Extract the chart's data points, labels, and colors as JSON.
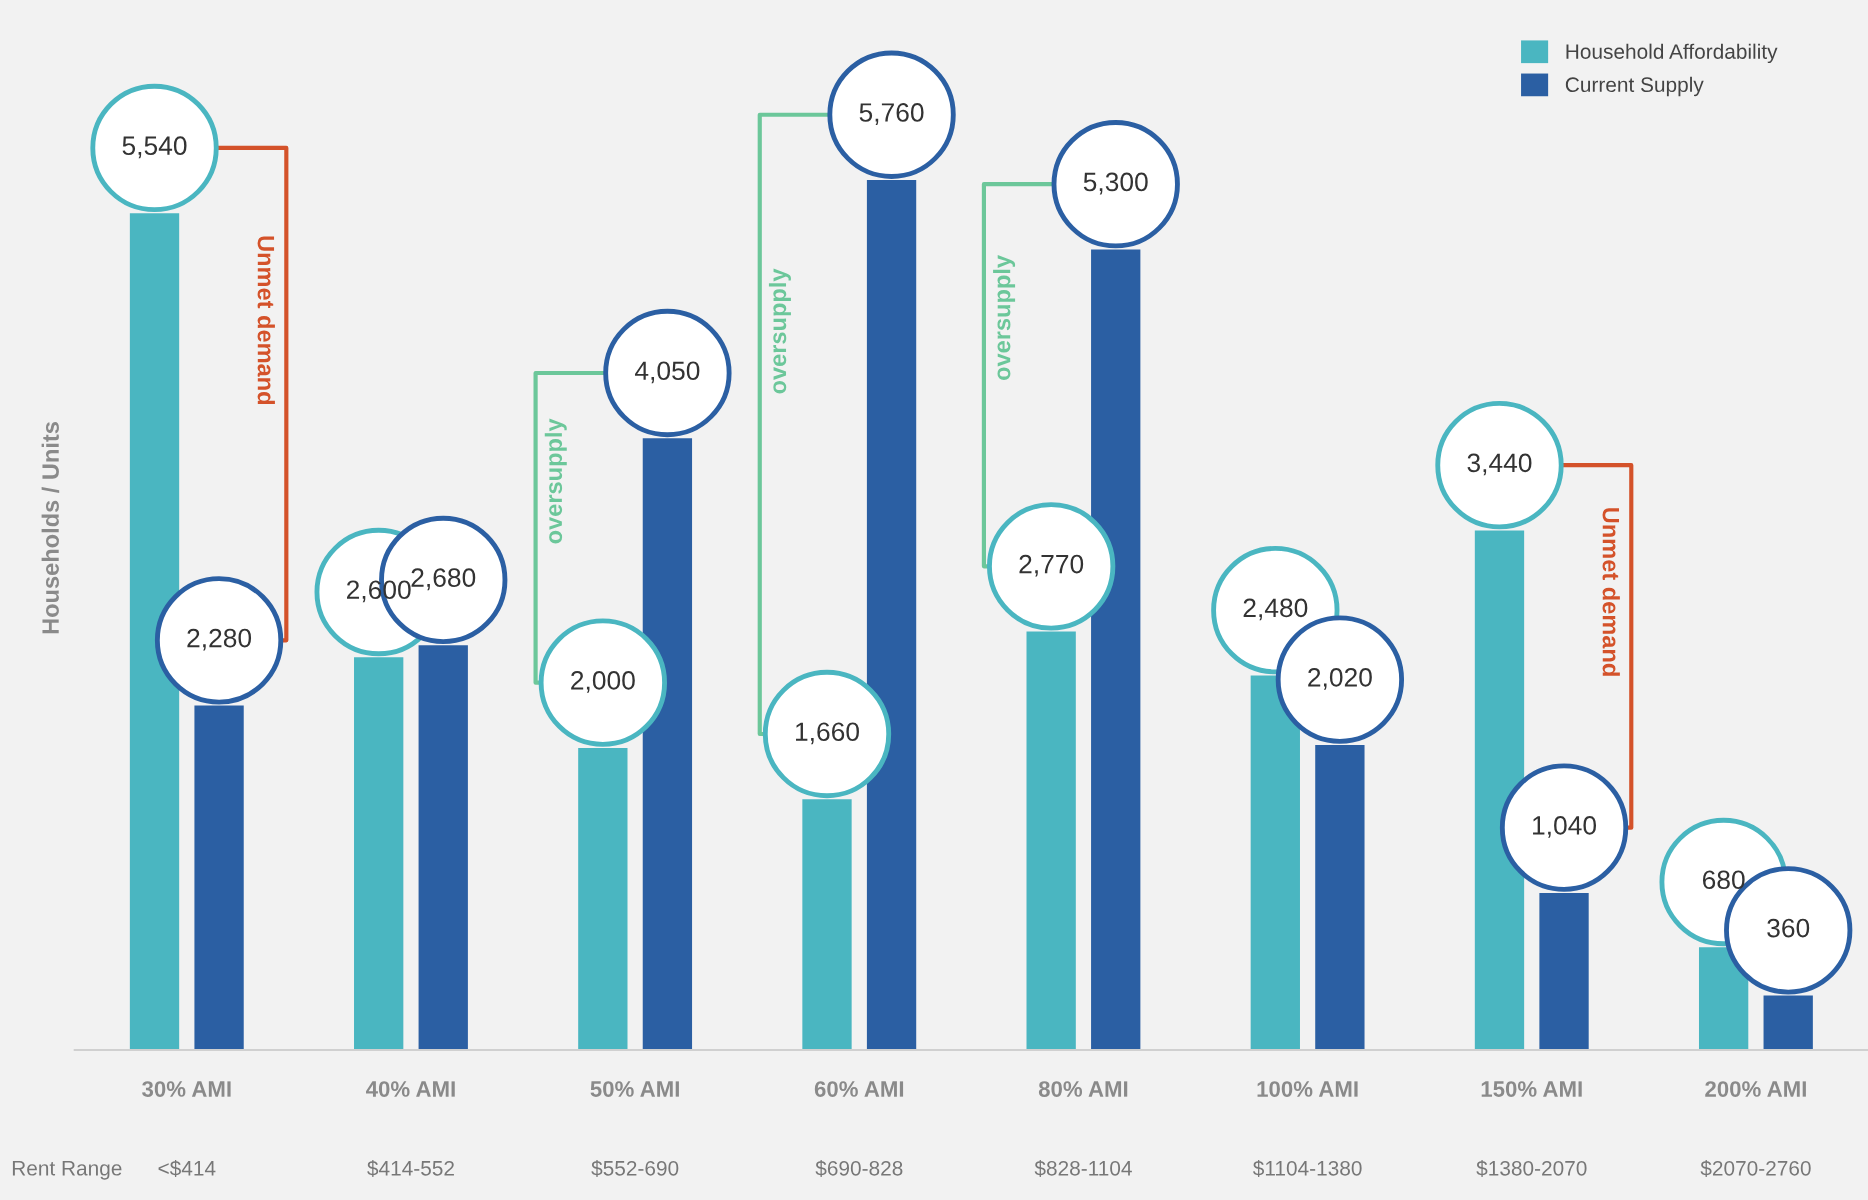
{
  "chart_data": {
    "type": "bar",
    "ylabel": "Households / Units",
    "categories": [
      "30% AMI",
      "40% AMI",
      "50% AMI",
      "60% AMI",
      "80% AMI",
      "100% AMI",
      "150% AMI",
      "200% AMI"
    ],
    "series": [
      {
        "name": "Household Affordability",
        "color": "#4ab6c1",
        "values": [
          5540,
          2600,
          2000,
          1660,
          2770,
          2480,
          3440,
          680
        ],
        "value_labels": [
          "5,540",
          "2,600",
          "2,000",
          "1,660",
          "2,770",
          "2,480",
          "3,440",
          "680"
        ]
      },
      {
        "name": "Current Supply",
        "color": "#2b5fa3",
        "values": [
          2280,
          2680,
          4050,
          5760,
          5300,
          2020,
          1040,
          360
        ],
        "value_labels": [
          "2,280",
          "2,680",
          "4,050",
          "5,760",
          "5,300",
          "2,020",
          "1,040",
          "360"
        ]
      }
    ],
    "legend": "top right",
    "grid": false,
    "tick_labels": "x",
    "annotations": [
      "Unmet demand",
      "oversupply",
      "oversupply",
      "oversupply",
      "Unmet demand",
      "Rent Range",
      "<$414",
      "$414-552",
      "$552-690",
      "$690-828",
      "$828-1104",
      "$1104-1380",
      "$1380-2070",
      "$2070-2760"
    ]
  }
}
